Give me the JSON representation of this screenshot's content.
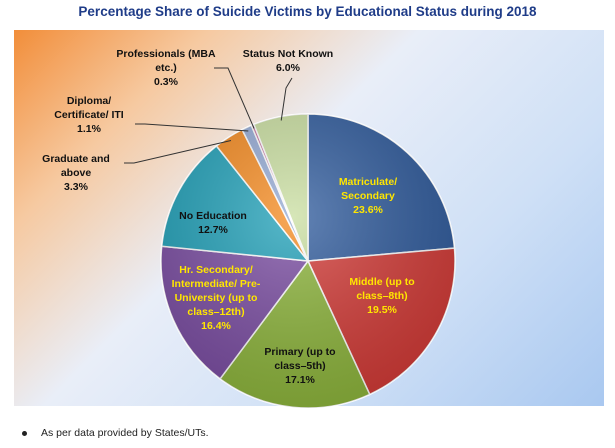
{
  "chart_data": {
    "type": "pie",
    "title": "Percentage Share of Suicide Victims by Educational Status during 2018",
    "slices": [
      {
        "label_lines": [
          "Matriculate/",
          "Secondary"
        ],
        "value_text": "23.6%",
        "value": 23.6,
        "color": "#2e5a9c",
        "text_color": "#ffe600"
      },
      {
        "label_lines": [
          "Middle (up to",
          "class–8th)"
        ],
        "value_text": "19.5%",
        "value": 19.5,
        "color": "#d33a36",
        "text_color": "#ffe600"
      },
      {
        "label_lines": [
          "Primary (up to",
          "class–5th)"
        ],
        "value_text": "17.1%",
        "value": 17.1,
        "color": "#8db53b",
        "text_color": "#111111"
      },
      {
        "label_lines": [
          "Hr. Secondary/",
          "Intermediate/ Pre-",
          "University (up to",
          "class–12th)"
        ],
        "value_text": "16.4%",
        "value": 16.4,
        "color": "#7a4ca2",
        "text_color": "#ffe600"
      },
      {
        "label_lines": [
          "No Education"
        ],
        "value_text": "12.7%",
        "value": 12.7,
        "color": "#1fa0b8",
        "text_color": "#111111"
      },
      {
        "label_lines": [
          "Graduate and",
          "above"
        ],
        "value_text": "3.3%",
        "value": 3.3,
        "color": "#f58a1f",
        "text_color": "#111111"
      },
      {
        "label_lines": [
          "Diploma/",
          "Certificate/ ITI"
        ],
        "value_text": "1.1%",
        "value": 1.1,
        "color": "#93a9d4",
        "text_color": "#111111"
      },
      {
        "label_lines": [
          "Professionals (MBA",
          "etc.)"
        ],
        "value_text": "0.3%",
        "value": 0.3,
        "color": "#c46a9a",
        "text_color": "#111111"
      },
      {
        "label_lines": [
          "Status Not Known"
        ],
        "value_text": "6.0%",
        "value": 6.0,
        "color": "#c9dea0",
        "text_color": "#111111"
      }
    ],
    "start_angle_deg": 0,
    "direction": "clockwise"
  },
  "footnote": "As per data provided by States/UTs."
}
